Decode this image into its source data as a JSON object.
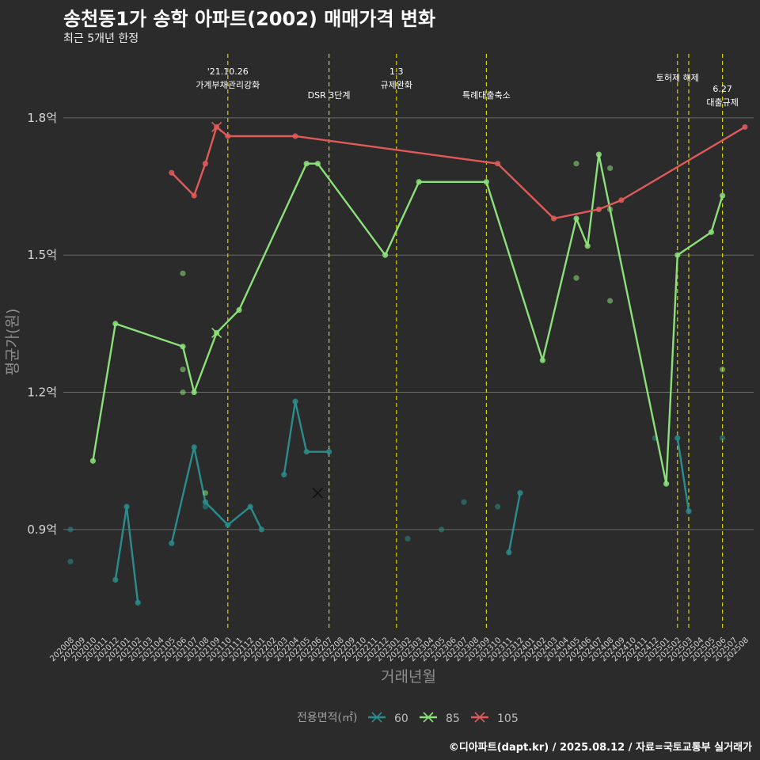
{
  "header": {
    "title": "송천동1가 송학 아파트(2002) 매매가격 변화",
    "subtitle": "최근 5개년 한정"
  },
  "caption": "©디아파트(dapt.kr) / 2025.08.12 / 자료=국토교통부 실거래가",
  "colors": {
    "60": "#2a8c8c",
    "85": "#8ce07a",
    "105": "#e05a5a",
    "vline": "#d4d400",
    "grid": "#6a6a6a"
  },
  "chart_data": {
    "type": "line",
    "xlabel": "거래년월",
    "ylabel": "평균가(원)",
    "ylim": [
      0.68,
      1.94
    ],
    "yticks": [
      {
        "v": 0.9,
        "label": "0.9억"
      },
      {
        "v": 1.2,
        "label": "1.2억"
      },
      {
        "v": 1.5,
        "label": "1.5억"
      },
      {
        "v": 1.8,
        "label": "1.8억"
      }
    ],
    "categories": [
      "202008",
      "202009",
      "202010",
      "202011",
      "202012",
      "202101",
      "202102",
      "202103",
      "202104",
      "202105",
      "202106",
      "202107",
      "202108",
      "202109",
      "202110",
      "202111",
      "202112",
      "202201",
      "202202",
      "202203",
      "202204",
      "202205",
      "202206",
      "202207",
      "202208",
      "202209",
      "202210",
      "202211",
      "202212",
      "202301",
      "202302",
      "202303",
      "202304",
      "202305",
      "202306",
      "202307",
      "202308",
      "202309",
      "202310",
      "202311",
      "202312",
      "202401",
      "202402",
      "202403",
      "202404",
      "202405",
      "202406",
      "202407",
      "202408",
      "202409",
      "202410",
      "202411",
      "202412",
      "202501",
      "202502",
      "202503",
      "202504",
      "202505",
      "202506",
      "202507",
      "202508"
    ],
    "legend": {
      "title": "전용면적(㎡)",
      "entries": [
        "60",
        "85",
        "105"
      ]
    },
    "annotations": [
      {
        "x": "202110",
        "lines": [
          "'21.10.26",
          "가계부채관리강화"
        ]
      },
      {
        "x": "202207",
        "lines": [
          "DSR 3단계"
        ]
      },
      {
        "x": "202301",
        "lines": [
          "1.3",
          "규제완화"
        ]
      },
      {
        "x": "202309",
        "lines": [
          "특례대출축소"
        ]
      },
      {
        "x": "202502",
        "lines": [
          "토허제 해제"
        ]
      },
      {
        "x": "202503",
        "lines": []
      },
      {
        "x": "202506",
        "lines": [
          "6.27",
          "대출규제"
        ]
      }
    ],
    "series": [
      {
        "name": "60",
        "line": [
          [
            [
              "202012",
              0.79
            ],
            [
              "202101",
              0.95
            ],
            [
              "202102",
              0.74
            ]
          ],
          [
            [
              "202105",
              0.87
            ],
            [
              "202107",
              1.08
            ],
            [
              "202108",
              0.96
            ],
            [
              "202110",
              0.91
            ],
            [
              "202112",
              0.95
            ],
            [
              "202201",
              0.9
            ]
          ],
          [
            [
              "202203",
              1.02
            ],
            [
              "202204",
              1.18
            ],
            [
              "202205",
              1.07
            ],
            [
              "202207",
              1.07
            ]
          ],
          [
            [
              "202311",
              0.85
            ],
            [
              "202312",
              0.98
            ]
          ],
          [
            [
              "202502",
              1.1
            ],
            [
              "202503",
              0.94
            ]
          ]
        ],
        "points": [
          [
            "202008",
            0.9
          ],
          [
            "202008",
            0.83
          ],
          [
            "202108",
            0.95
          ],
          [
            "202302",
            0.88
          ],
          [
            "202305",
            0.9
          ],
          [
            "202307",
            0.96
          ],
          [
            "202310",
            0.95
          ],
          [
            "202412",
            1.1
          ],
          [
            "202506",
            1.1
          ]
        ],
        "cross": [
          "202206",
          0.98
        ]
      },
      {
        "name": "85",
        "line": [
          [
            [
              "202010",
              1.05
            ],
            [
              "202012",
              1.35
            ],
            [
              "202106",
              1.3
            ],
            [
              "202107",
              1.2
            ],
            [
              "202109",
              1.33
            ],
            [
              "202111",
              1.38
            ],
            [
              "202205",
              1.7
            ],
            [
              "202206",
              1.7
            ],
            [
              "202212",
              1.5
            ],
            [
              "202303",
              1.66
            ],
            [
              "202309",
              1.66
            ],
            [
              "202402",
              1.27
            ],
            [
              "202405",
              1.58
            ],
            [
              "202406",
              1.52
            ],
            [
              "202407",
              1.72
            ],
            [
              "202501",
              1.0
            ],
            [
              "202502",
              1.5
            ],
            [
              "202505",
              1.55
            ],
            [
              "202506",
              1.63
            ]
          ]
        ],
        "points": [
          [
            "202106",
            1.46
          ],
          [
            "202106",
            1.25
          ],
          [
            "202106",
            1.2
          ],
          [
            "202108",
            0.98
          ],
          [
            "202405",
            1.7
          ],
          [
            "202405",
            1.45
          ],
          [
            "202408",
            1.69
          ],
          [
            "202408",
            1.6
          ],
          [
            "202408",
            1.4
          ],
          [
            "202506",
            1.25
          ]
        ],
        "cross": [
          "202109",
          1.33
        ]
      },
      {
        "name": "105",
        "line": [
          [
            [
              "202105",
              1.68
            ],
            [
              "202107",
              1.63
            ],
            [
              "202108",
              1.7
            ],
            [
              "202109",
              1.78
            ],
            [
              "202110",
              1.76
            ],
            [
              "202204",
              1.76
            ],
            [
              "202310",
              1.7
            ],
            [
              "202403",
              1.58
            ],
            [
              "202407",
              1.6
            ],
            [
              "202409",
              1.62
            ],
            [
              "202508",
              1.78
            ]
          ]
        ],
        "points": [],
        "cross": [
          "202109",
          1.78
        ]
      }
    ]
  }
}
